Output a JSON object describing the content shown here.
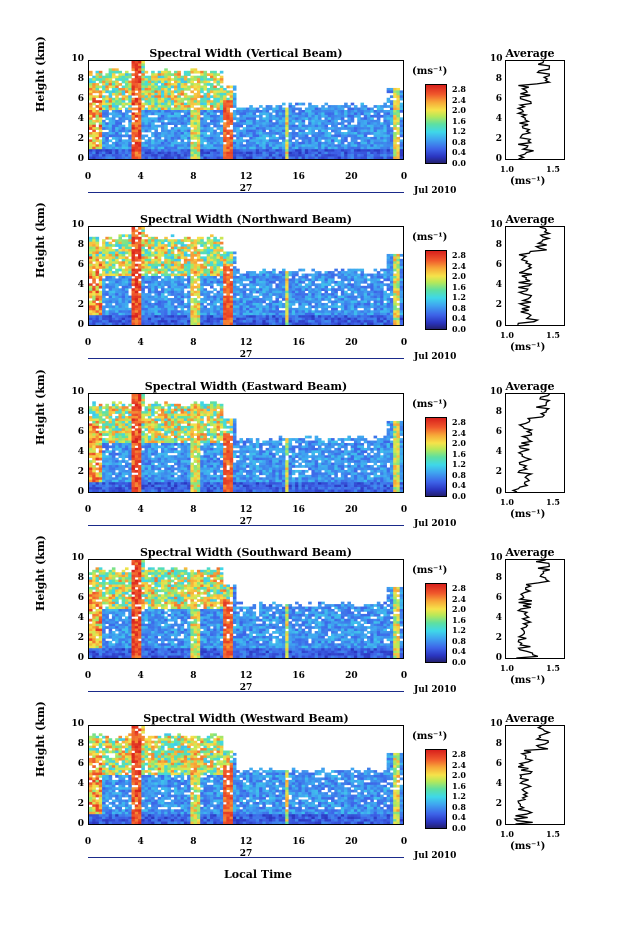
{
  "chart_data": [
    {
      "type": "heatmap",
      "title": "Spectral Width (Vertical Beam)",
      "ylabel": "Height (km)",
      "ylim": [
        0,
        10
      ],
      "xticks": [
        "0",
        "4",
        "8",
        "12",
        "16",
        "20",
        "0"
      ],
      "day": "27",
      "date": "Jul 2010",
      "colorbar_unit": "(ms⁻¹)",
      "colorbar_ticks": [
        "2.8",
        "2.4",
        "2.0",
        "1.6",
        "1.2",
        "0.8",
        "0.4",
        "0.0"
      ],
      "average": {
        "title": "Average",
        "xticks": [
          "1.0",
          "1.5"
        ],
        "xlabel": "(ms⁻¹)"
      }
    },
    {
      "type": "heatmap",
      "title": "Spectral Width (Northward Beam)",
      "ylabel": "Height (km)",
      "ylim": [
        0,
        10
      ],
      "xticks": [
        "0",
        "4",
        "8",
        "12",
        "16",
        "20",
        "0"
      ],
      "day": "27",
      "date": "Jul 2010",
      "colorbar_unit": "(ms⁻¹)",
      "colorbar_ticks": [
        "2.8",
        "2.4",
        "2.0",
        "1.6",
        "1.2",
        "0.8",
        "0.4",
        "0.0"
      ],
      "average": {
        "title": "Average",
        "xticks": [
          "1.0",
          "1.5"
        ],
        "xlabel": "(ms⁻¹)"
      }
    },
    {
      "type": "heatmap",
      "title": "Spectral Width (Eastward Beam)",
      "ylabel": "Height (km)",
      "ylim": [
        0,
        10
      ],
      "xticks": [
        "0",
        "4",
        "8",
        "12",
        "16",
        "20",
        "0"
      ],
      "day": "27",
      "date": "Jul 2010",
      "colorbar_unit": "(ms⁻¹)",
      "colorbar_ticks": [
        "2.8",
        "2.4",
        "2.0",
        "1.6",
        "1.2",
        "0.8",
        "0.4",
        "0.0"
      ],
      "average": {
        "title": "Average",
        "xticks": [
          "1.0",
          "1.5"
        ],
        "xlabel": "(ms⁻¹)"
      }
    },
    {
      "type": "heatmap",
      "title": "Spectral Width (Southward Beam)",
      "ylabel": "Height (km)",
      "ylim": [
        0,
        10
      ],
      "xticks": [
        "0",
        "4",
        "8",
        "12",
        "16",
        "20",
        "0"
      ],
      "day": "27",
      "date": "Jul 2010",
      "colorbar_unit": "(ms⁻¹)",
      "colorbar_ticks": [
        "2.8",
        "2.4",
        "2.0",
        "1.6",
        "1.2",
        "0.8",
        "0.4",
        "0.0"
      ],
      "average": {
        "title": "Average",
        "xticks": [
          "1.0",
          "1.5"
        ],
        "xlabel": "(ms⁻¹)"
      }
    },
    {
      "type": "heatmap",
      "title": "Spectral Width (Westward Beam)",
      "ylabel": "Height (km)",
      "ylim": [
        0,
        10
      ],
      "xticks": [
        "0",
        "4",
        "8",
        "12",
        "16",
        "20",
        "0"
      ],
      "day": "27",
      "date": "Jul 2010",
      "colorbar_unit": "(ms⁻¹)",
      "colorbar_ticks": [
        "2.8",
        "2.4",
        "2.0",
        "1.6",
        "1.2",
        "0.8",
        "0.4",
        "0.0"
      ],
      "average": {
        "title": "Average",
        "xticks": [
          "1.0",
          "1.5"
        ],
        "xlabel": "(ms⁻¹)"
      }
    }
  ],
  "xlabel": "Local Time"
}
